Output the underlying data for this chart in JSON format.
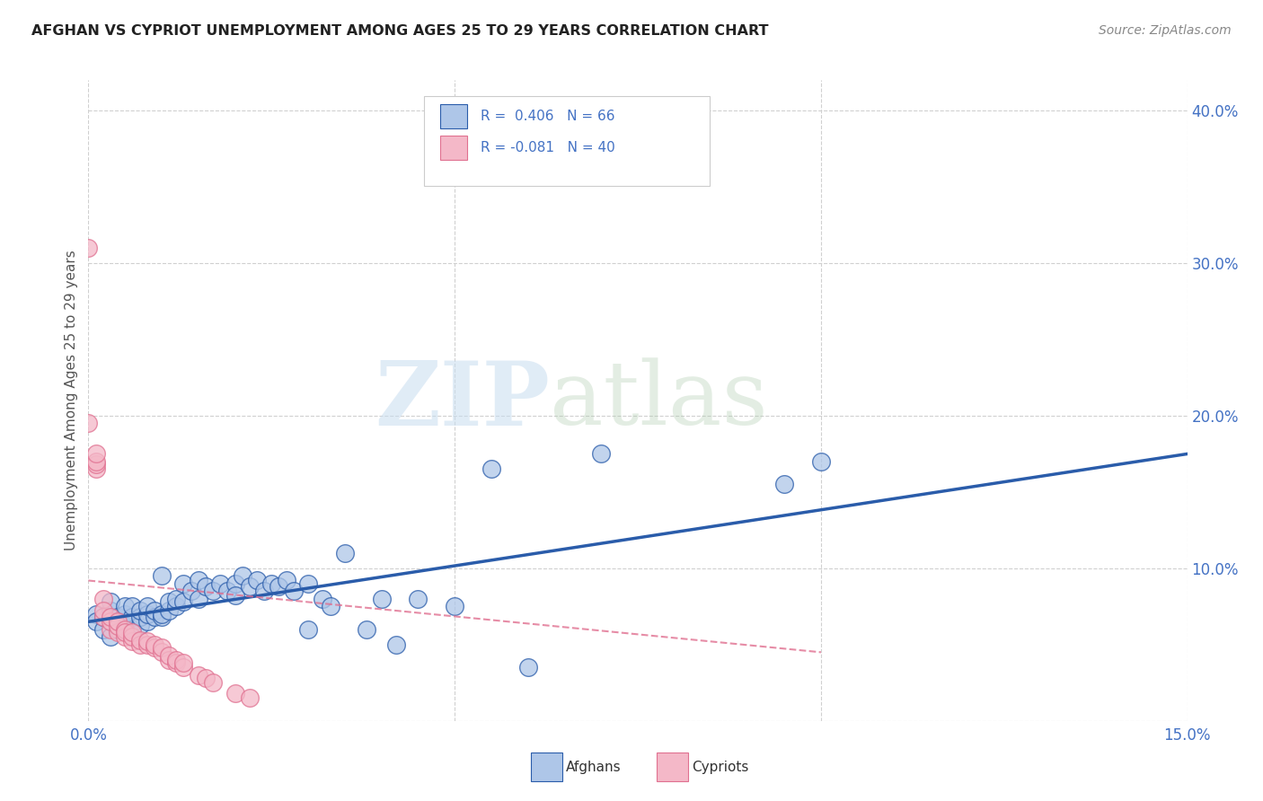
{
  "title": "AFGHAN VS CYPRIOT UNEMPLOYMENT AMONG AGES 25 TO 29 YEARS CORRELATION CHART",
  "source": "Source: ZipAtlas.com",
  "ylabel": "Unemployment Among Ages 25 to 29 years",
  "xlim": [
    0.0,
    0.15
  ],
  "ylim": [
    0.0,
    0.42
  ],
  "watermark_zip": "ZIP",
  "watermark_atlas": "atlas",
  "afghan_R": 0.406,
  "afghan_N": 66,
  "cypriot_R": -0.081,
  "cypriot_N": 40,
  "afghan_color": "#aec6e8",
  "cypriot_color": "#f4b8c8",
  "afghan_line_color": "#2a5caa",
  "cypriot_line_color": "#e07090",
  "background_color": "#ffffff",
  "title_color": "#222222",
  "source_color": "#888888",
  "tick_color": "#4472c4",
  "grid_color": "#d0d0d0",
  "afghan_points_x": [
    0.001,
    0.001,
    0.002,
    0.002,
    0.003,
    0.003,
    0.003,
    0.004,
    0.004,
    0.004,
    0.005,
    0.005,
    0.005,
    0.005,
    0.006,
    0.006,
    0.006,
    0.007,
    0.007,
    0.007,
    0.008,
    0.008,
    0.008,
    0.009,
    0.009,
    0.01,
    0.01,
    0.01,
    0.011,
    0.011,
    0.012,
    0.012,
    0.013,
    0.013,
    0.014,
    0.015,
    0.015,
    0.016,
    0.017,
    0.018,
    0.019,
    0.02,
    0.02,
    0.021,
    0.022,
    0.023,
    0.024,
    0.025,
    0.026,
    0.027,
    0.028,
    0.03,
    0.03,
    0.032,
    0.033,
    0.035,
    0.038,
    0.04,
    0.042,
    0.045,
    0.05,
    0.055,
    0.06,
    0.07,
    0.095,
    0.1
  ],
  "afghan_points_y": [
    0.07,
    0.065,
    0.06,
    0.068,
    0.055,
    0.072,
    0.078,
    0.06,
    0.065,
    0.068,
    0.06,
    0.065,
    0.07,
    0.075,
    0.06,
    0.068,
    0.075,
    0.063,
    0.068,
    0.072,
    0.065,
    0.07,
    0.075,
    0.068,
    0.072,
    0.068,
    0.07,
    0.095,
    0.072,
    0.078,
    0.075,
    0.08,
    0.078,
    0.09,
    0.085,
    0.08,
    0.092,
    0.088,
    0.085,
    0.09,
    0.085,
    0.09,
    0.082,
    0.095,
    0.088,
    0.092,
    0.085,
    0.09,
    0.088,
    0.092,
    0.085,
    0.09,
    0.06,
    0.08,
    0.075,
    0.11,
    0.06,
    0.08,
    0.05,
    0.08,
    0.075,
    0.165,
    0.035,
    0.175,
    0.155,
    0.17
  ],
  "cypriot_points_x": [
    0.0,
    0.0,
    0.001,
    0.001,
    0.001,
    0.001,
    0.002,
    0.002,
    0.002,
    0.003,
    0.003,
    0.003,
    0.004,
    0.004,
    0.004,
    0.005,
    0.005,
    0.005,
    0.006,
    0.006,
    0.006,
    0.007,
    0.007,
    0.008,
    0.008,
    0.009,
    0.009,
    0.01,
    0.01,
    0.011,
    0.011,
    0.012,
    0.012,
    0.013,
    0.013,
    0.015,
    0.016,
    0.017,
    0.02,
    0.022
  ],
  "cypriot_points_y": [
    0.31,
    0.195,
    0.165,
    0.168,
    0.17,
    0.175,
    0.08,
    0.068,
    0.072,
    0.06,
    0.065,
    0.068,
    0.058,
    0.062,
    0.065,
    0.055,
    0.06,
    0.058,
    0.052,
    0.055,
    0.058,
    0.05,
    0.053,
    0.05,
    0.052,
    0.048,
    0.05,
    0.045,
    0.048,
    0.04,
    0.043,
    0.038,
    0.04,
    0.035,
    0.038,
    0.03,
    0.028,
    0.025,
    0.018,
    0.015
  ],
  "afghan_trend_x": [
    0.0,
    0.15
  ],
  "afghan_trend_y": [
    0.065,
    0.175
  ],
  "cypriot_trend_x": [
    0.0,
    0.1
  ],
  "cypriot_trend_y": [
    0.092,
    0.045
  ]
}
